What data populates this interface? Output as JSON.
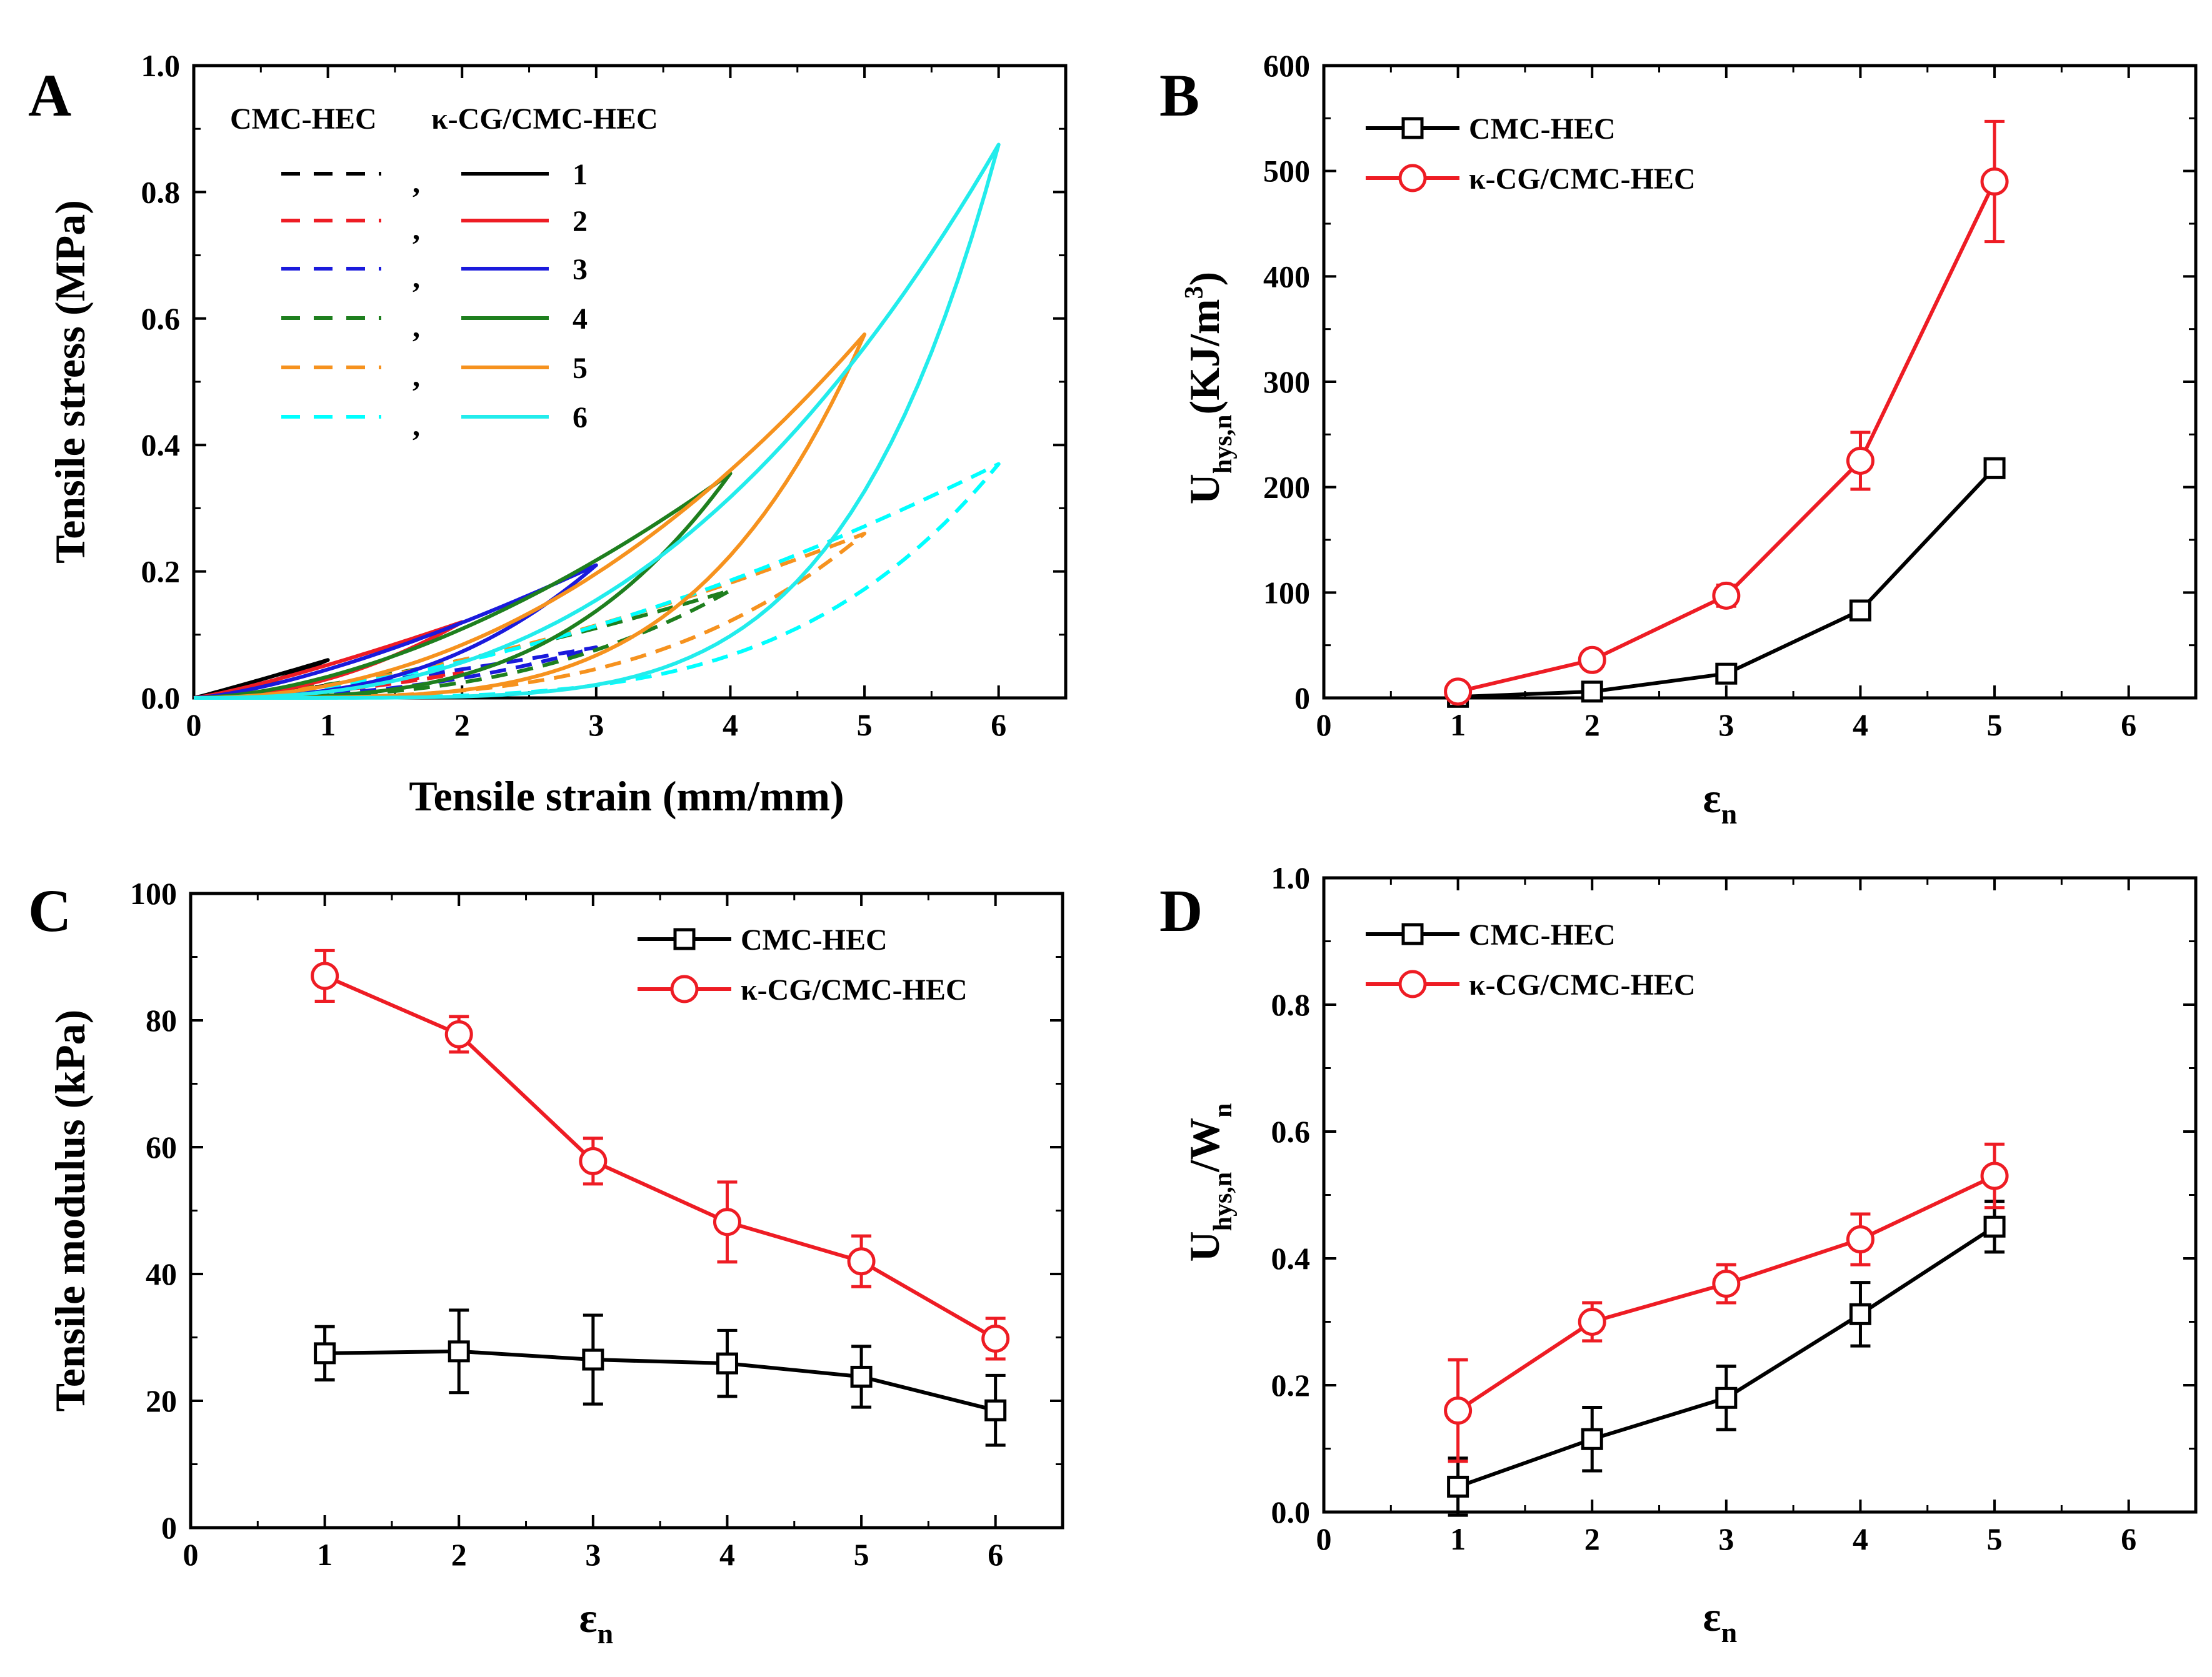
{
  "colors": {
    "black": "#000000",
    "red": "#ee1c24",
    "blue": "#1a1adc",
    "green": "#1e7f1e",
    "orange": "#f6921e",
    "cyan": "#00ffff",
    "cyan_line": "#22ecec"
  },
  "chart_data": [
    {
      "panel": "A",
      "type": "line",
      "xlabel": "Tensile strain (mm/mm)",
      "ylabel": "Tensile stress (MPa)",
      "xlim": [
        0,
        6.5
      ],
      "ylim": [
        0,
        1.0
      ],
      "xticks": [
        0,
        1,
        2,
        3,
        4,
        5,
        6
      ],
      "yticks": [
        0.0,
        0.2,
        0.4,
        0.6,
        0.8,
        1.0
      ],
      "xtick_labels": [
        "0",
        "1",
        "2",
        "3",
        "4",
        "5",
        "6"
      ],
      "ytick_labels": [
        "0.0",
        "0.2",
        "0.4",
        "0.6",
        "0.8",
        "1.0"
      ],
      "legend": {
        "header_dashed": "CMC-HEC",
        "header_solid": "κ-CG/CMC-HEC",
        "separator": ",",
        "cycle_labels": [
          "1",
          "2",
          "3",
          "4",
          "5",
          "6"
        ],
        "placement": "top-left"
      },
      "series": [
        {
          "name": "CMC-HEC cycle 1",
          "cycle": 1,
          "style": "dashed",
          "color": "black",
          "max_strain": 1,
          "max_stress": 0.02,
          "loading_shape": 1.2,
          "unloading_shape": 1.6
        },
        {
          "name": "CMC-HEC cycle 2",
          "cycle": 2,
          "style": "dashed",
          "color": "red",
          "max_strain": 2,
          "max_stress": 0.04,
          "loading_shape": 1.3,
          "unloading_shape": 1.9
        },
        {
          "name": "CMC-HEC cycle 3",
          "cycle": 3,
          "style": "dashed",
          "color": "blue",
          "max_strain": 3,
          "max_stress": 0.08,
          "loading_shape": 1.4,
          "unloading_shape": 2.3
        },
        {
          "name": "CMC-HEC cycle 4",
          "cycle": 4,
          "style": "dashed",
          "color": "green",
          "max_strain": 4,
          "max_stress": 0.17,
          "loading_shape": 1.5,
          "unloading_shape": 2.8
        },
        {
          "name": "CMC-HEC cycle 5",
          "cycle": 5,
          "style": "dashed",
          "color": "orange",
          "max_strain": 5,
          "max_stress": 0.26,
          "loading_shape": 1.6,
          "unloading_shape": 3.4
        },
        {
          "name": "CMC-HEC cycle 6",
          "cycle": 6,
          "style": "dashed",
          "color": "cyan",
          "max_strain": 6,
          "max_stress": 0.37,
          "loading_shape": 1.7,
          "unloading_shape": 4.2
        },
        {
          "name": "κ-CG/CMC-HEC cycle 1",
          "cycle": 1,
          "style": "solid",
          "color": "black",
          "max_strain": 1,
          "max_stress": 0.06,
          "loading_shape": 1.05,
          "unloading_shape": 1.5
        },
        {
          "name": "κ-CG/CMC-HEC cycle 2",
          "cycle": 2,
          "style": "solid",
          "color": "red",
          "max_strain": 2,
          "max_stress": 0.12,
          "loading_shape": 1.2,
          "unloading_shape": 2.0
        },
        {
          "name": "κ-CG/CMC-HEC cycle 3",
          "cycle": 3,
          "style": "solid",
          "color": "blue",
          "max_strain": 3,
          "max_stress": 0.21,
          "loading_shape": 1.4,
          "unloading_shape": 2.6
        },
        {
          "name": "κ-CG/CMC-HEC cycle 4",
          "cycle": 4,
          "style": "solid",
          "color": "green",
          "max_strain": 4,
          "max_stress": 0.355,
          "loading_shape": 1.7,
          "unloading_shape": 3.3
        },
        {
          "name": "κ-CG/CMC-HEC cycle 5",
          "cycle": 5,
          "style": "solid",
          "color": "orange",
          "max_strain": 5,
          "max_stress": 0.575,
          "loading_shape": 2.1,
          "unloading_shape": 4.2
        },
        {
          "name": "κ-CG/CMC-HEC cycle 6",
          "cycle": 6,
          "style": "solid",
          "color": "cyan_line",
          "max_strain": 6,
          "max_stress": 0.875,
          "loading_shape": 2.5,
          "unloading_shape": 5.4
        }
      ]
    },
    {
      "panel": "B",
      "type": "line",
      "xlabel": "ε",
      "xlabel_sub": "n",
      "ylabel": "U",
      "ylabel_sub": "hys,n",
      "ylabel_units": "(KJ/m",
      "ylabel_sup": "3",
      "ylabel_close": ")",
      "xlim": [
        0,
        6.5
      ],
      "ylim": [
        0,
        600
      ],
      "xticks": [
        0,
        1,
        2,
        3,
        4,
        5,
        6
      ],
      "yticks": [
        0,
        100,
        200,
        300,
        400,
        500,
        600
      ],
      "xtick_labels": [
        "0",
        "1",
        "2",
        "3",
        "4",
        "5",
        "6"
      ],
      "ytick_labels": [
        "0",
        "100",
        "200",
        "300",
        "400",
        "500",
        "600"
      ],
      "legend_placement": "top-left",
      "series": [
        {
          "name": "CMC-HEC",
          "color": "black",
          "marker": "square",
          "x": [
            1,
            2,
            3,
            4,
            5
          ],
          "y": [
            1,
            6,
            23,
            83,
            218
          ],
          "err": [
            1,
            2,
            6,
            7,
            6
          ]
        },
        {
          "name": "κ-CG/CMC-HEC",
          "color": "red",
          "marker": "circle",
          "x": [
            1,
            2,
            3,
            4,
            5
          ],
          "y": [
            6,
            36,
            97,
            225,
            490
          ],
          "err": [
            3,
            5,
            10,
            27,
            57
          ]
        }
      ]
    },
    {
      "panel": "C",
      "type": "line",
      "xlabel": "ε",
      "xlabel_sub": "n",
      "ylabel": "Tensile modulus (kPa)",
      "xlim": [
        0,
        6.5
      ],
      "ylim": [
        0,
        100
      ],
      "xticks": [
        0,
        1,
        2,
        3,
        4,
        5,
        6
      ],
      "yticks": [
        0,
        20,
        40,
        60,
        80,
        100
      ],
      "xtick_labels": [
        "0",
        "1",
        "2",
        "3",
        "4",
        "5",
        "6"
      ],
      "ytick_labels": [
        "0",
        "20",
        "40",
        "60",
        "80",
        "100"
      ],
      "legend_placement": "top-right",
      "series": [
        {
          "name": "CMC-HEC",
          "color": "black",
          "marker": "square",
          "x": [
            1,
            2,
            3,
            4,
            5,
            6
          ],
          "y": [
            27.5,
            27.8,
            26.5,
            25.9,
            23.8,
            18.5
          ],
          "err": [
            4.2,
            6.5,
            7,
            5.2,
            4.8,
            5.5
          ]
        },
        {
          "name": "κ-CG/CMC-HEC",
          "color": "red",
          "marker": "circle",
          "x": [
            1,
            2,
            3,
            4,
            5,
            6
          ],
          "y": [
            87,
            77.8,
            57.8,
            48.2,
            42,
            29.8
          ],
          "err": [
            4,
            2.8,
            3.6,
            6.3,
            4,
            3.2
          ]
        }
      ]
    },
    {
      "panel": "D",
      "type": "line",
      "xlabel": "ε",
      "xlabel_sub": "n",
      "ylabel": "U",
      "ylabel_sub": "hys,n",
      "ylabel_mid": "/W",
      "ylabel_sub2": "n",
      "xlim": [
        0,
        6.5
      ],
      "ylim": [
        0,
        1.0
      ],
      "xticks": [
        0,
        1,
        2,
        3,
        4,
        5,
        6
      ],
      "yticks": [
        0.0,
        0.2,
        0.4,
        0.6,
        0.8,
        1.0
      ],
      "xtick_labels": [
        "0",
        "1",
        "2",
        "3",
        "4",
        "5",
        "6"
      ],
      "ytick_labels": [
        "0.0",
        "0.2",
        "0.4",
        "0.6",
        "0.8",
        "1.0"
      ],
      "legend_placement": "top-left",
      "series": [
        {
          "name": "CMC-HEC",
          "color": "black",
          "marker": "square",
          "x": [
            1,
            2,
            3,
            4,
            5
          ],
          "y": [
            0.04,
            0.115,
            0.18,
            0.312,
            0.45
          ],
          "err": [
            0.045,
            0.05,
            0.05,
            0.05,
            0.04
          ]
        },
        {
          "name": "κ-CG/CMC-HEC",
          "color": "red",
          "marker": "circle",
          "x": [
            1,
            2,
            3,
            4,
            5
          ],
          "y": [
            0.16,
            0.3,
            0.36,
            0.43,
            0.53
          ],
          "err": [
            0.08,
            0.03,
            0.03,
            0.04,
            0.05
          ]
        }
      ]
    }
  ]
}
